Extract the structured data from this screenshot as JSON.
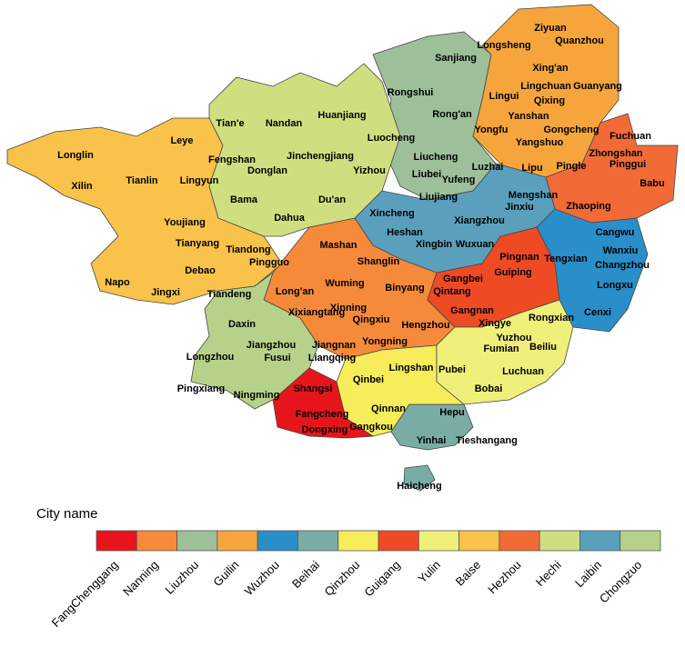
{
  "legend": {
    "title": "City name",
    "items": [
      {
        "name": "FangChenggang",
        "color": "#e8141c"
      },
      {
        "name": "Nanning",
        "color": "#f58a3a"
      },
      {
        "name": "Liuzhou",
        "color": "#9dbf9a"
      },
      {
        "name": "Guilin",
        "color": "#f6a53c"
      },
      {
        "name": "Wuzhou",
        "color": "#2a8ec8"
      },
      {
        "name": "Beihai",
        "color": "#7aaca6"
      },
      {
        "name": "Qinzhou",
        "color": "#f7ec5a"
      },
      {
        "name": "Guigang",
        "color": "#ee4b25"
      },
      {
        "name": "Yulin",
        "color": "#eef07a"
      },
      {
        "name": "Baise",
        "color": "#f9c24a"
      },
      {
        "name": "Hezhou",
        "color": "#f26b36"
      },
      {
        "name": "Hechi",
        "color": "#cfdf7f"
      },
      {
        "name": "Laibin",
        "color": "#5aa0bd"
      },
      {
        "name": "Chongzuo",
        "color": "#b6d28a"
      }
    ]
  },
  "labels": [
    "Ziyuan",
    "Quanzhou",
    "Longsheng",
    "Sanjiang",
    "Xing'an",
    "Lingchuan",
    "Guanyang",
    "Lingui",
    "Qixing",
    "Rongshui",
    "Tian'e",
    "Nandan",
    "Huanjiang",
    "Rong'an",
    "Yanshan",
    "Gongcheng",
    "Fuchuan",
    "Yongfu",
    "Leye",
    "Luocheng",
    "Longlin",
    "Jinchengjiang",
    "Yangshuo",
    "Zhongshan",
    "Liucheng",
    "Fengshan",
    "Luzhai",
    "Pingle",
    "Lipu",
    "Liubei",
    "Yufeng",
    "Pinggui",
    "Babu",
    "Tianlin",
    "Xilin",
    "Lingyun",
    "Donglan",
    "Yizhou",
    "Bama",
    "Du'an",
    "Liujiang",
    "Mengshan",
    "Jinxiu",
    "Zhaoping",
    "Dahua",
    "Xincheng",
    "Xiangzhou",
    "Cangwu",
    "Youjiang",
    "Heshan",
    "Wanxiu",
    "Tianyang",
    "Tiandong",
    "Pingnan",
    "Tengxian",
    "Xingbin",
    "Wuxuan",
    "Mashan",
    "Shanglin",
    "Changzhou",
    "Pingguo",
    "Debao",
    "Guiping",
    "Gangbei",
    "Napo",
    "Jingxi",
    "Wuming",
    "Tiandeng",
    "Qintang",
    "Binyang",
    "Long'an",
    "Longxu",
    "Xinning",
    "Gangnan",
    "Daxin",
    "Xixiangtang",
    "Qingxiu",
    "Hengzhou",
    "Rongxian",
    "Cenxi",
    "Xingye",
    "Yuzhou",
    "Jiangzhou",
    "Jiangnan",
    "Yongning",
    "Liangqing",
    "Beiliu",
    "Fumian",
    "Longzhou",
    "Fusui",
    "Lingshan",
    "Pubei",
    "Luchuan",
    "Qinbei",
    "Shangsi",
    "Pingxiang",
    "Ningming",
    "Bobai",
    "Qinnan",
    "Hepu",
    "Fangcheng",
    "Gangkou",
    "Dongxing",
    "Yinhai",
    "Tieshangang",
    "Haicheng"
  ]
}
